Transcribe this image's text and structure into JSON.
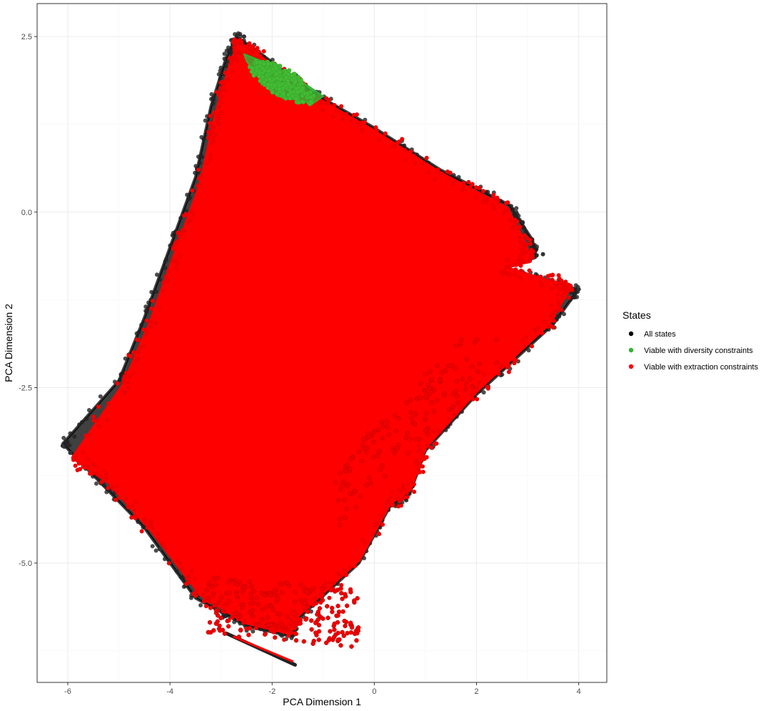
{
  "chart_data": {
    "type": "scatter",
    "xlabel": "PCA Dimension 1",
    "ylabel": "PCA Dimension 2",
    "xlim": [
      -6.6,
      4.55
    ],
    "ylim": [
      -6.7,
      2.97
    ],
    "x_ticks": [
      -6,
      -4,
      -2,
      0,
      2,
      4
    ],
    "x_tick_labels": [
      "-6",
      "-4",
      "-2",
      "0",
      "2",
      "4"
    ],
    "y_ticks": [
      -5.0,
      -2.5,
      0.0,
      2.5
    ],
    "y_tick_labels": [
      "-5.0",
      "-2.5",
      "0.0",
      "2.5"
    ],
    "grid": true,
    "legend": {
      "title": "States",
      "position": "right",
      "entries": [
        "All states",
        "Viable with diversity constraints",
        "Viable with extraction constraints"
      ]
    },
    "series": [
      {
        "name": "All states",
        "color": "#000000",
        "region_outline": [
          [
            -2.7,
            2.5
          ],
          [
            -2.3,
            2.3
          ],
          [
            -1.2,
            1.7
          ],
          [
            0.0,
            1.2
          ],
          [
            1.3,
            0.6
          ],
          [
            2.65,
            0.1
          ],
          [
            3.1,
            -0.4
          ],
          [
            3.15,
            -0.65
          ],
          [
            2.5,
            -0.8
          ],
          [
            3.4,
            -1.0
          ],
          [
            4.0,
            -1.1
          ],
          [
            3.5,
            -1.6
          ],
          [
            2.0,
            -2.6
          ],
          [
            1.0,
            -3.4
          ],
          [
            0.7,
            -4.0
          ],
          [
            0.3,
            -4.2
          ],
          [
            -0.3,
            -5.0
          ],
          [
            -1.5,
            -5.8
          ],
          [
            -1.6,
            -6.05
          ],
          [
            -2.5,
            -5.9
          ],
          [
            -3.5,
            -5.5
          ],
          [
            -4.5,
            -4.5
          ],
          [
            -5.3,
            -3.9
          ],
          [
            -6.1,
            -3.3
          ],
          [
            -5.0,
            -2.4
          ],
          [
            -4.5,
            -1.5
          ],
          [
            -4.0,
            -0.5
          ],
          [
            -3.5,
            0.5
          ],
          [
            -3.2,
            1.5
          ],
          [
            -2.9,
            2.2
          ]
        ],
        "tail": [
          [
            -2.9,
            -6.0
          ],
          [
            -1.55,
            -6.45
          ]
        ],
        "outliers": [
          [
            -6.1,
            -3.33
          ],
          [
            -5.95,
            -3.43
          ],
          [
            -4.2,
            -4.8
          ],
          [
            3.3,
            -0.6
          ],
          [
            4.0,
            -1.1
          ],
          [
            -2.55,
            2.5
          ],
          [
            -2.8,
            2.45
          ]
        ]
      },
      {
        "name": "Viable with diversity constraints",
        "color": "#33b233",
        "region_outline": [
          [
            -2.55,
            2.25
          ],
          [
            -2.2,
            2.15
          ],
          [
            -1.6,
            1.95
          ],
          [
            -1.0,
            1.65
          ],
          [
            -1.2,
            1.55
          ],
          [
            -1.9,
            1.65
          ],
          [
            -2.3,
            1.95
          ],
          [
            -2.5,
            2.15
          ]
        ],
        "center": [
          -1.8,
          1.85
        ]
      },
      {
        "name": "Viable with extraction constraints",
        "color": "#ff0000",
        "region_outline": [
          [
            -2.65,
            2.4
          ],
          [
            -2.3,
            2.25
          ],
          [
            -1.2,
            1.65
          ],
          [
            0.0,
            1.15
          ],
          [
            1.3,
            0.55
          ],
          [
            2.6,
            0.05
          ],
          [
            2.95,
            -0.45
          ],
          [
            3.05,
            -0.7
          ],
          [
            2.5,
            -0.78
          ],
          [
            3.4,
            -0.98
          ],
          [
            3.85,
            -1.05
          ],
          [
            3.4,
            -1.6
          ],
          [
            2.0,
            -2.55
          ],
          [
            1.0,
            -3.35
          ],
          [
            0.7,
            -3.95
          ],
          [
            0.3,
            -4.15
          ],
          [
            -0.3,
            -4.95
          ],
          [
            -1.5,
            -5.75
          ],
          [
            -1.65,
            -6.0
          ],
          [
            -2.5,
            -5.85
          ],
          [
            -3.4,
            -5.45
          ],
          [
            -4.4,
            -4.5
          ],
          [
            -5.2,
            -3.85
          ],
          [
            -5.9,
            -3.5
          ],
          [
            -4.9,
            -2.45
          ],
          [
            -4.4,
            -1.6
          ],
          [
            -3.9,
            -0.6
          ],
          [
            -3.4,
            0.4
          ],
          [
            -3.1,
            1.4
          ],
          [
            -2.8,
            2.15
          ]
        ],
        "tail": [
          [
            -2.75,
            -6.05
          ],
          [
            -1.6,
            -6.4
          ]
        ]
      }
    ]
  }
}
